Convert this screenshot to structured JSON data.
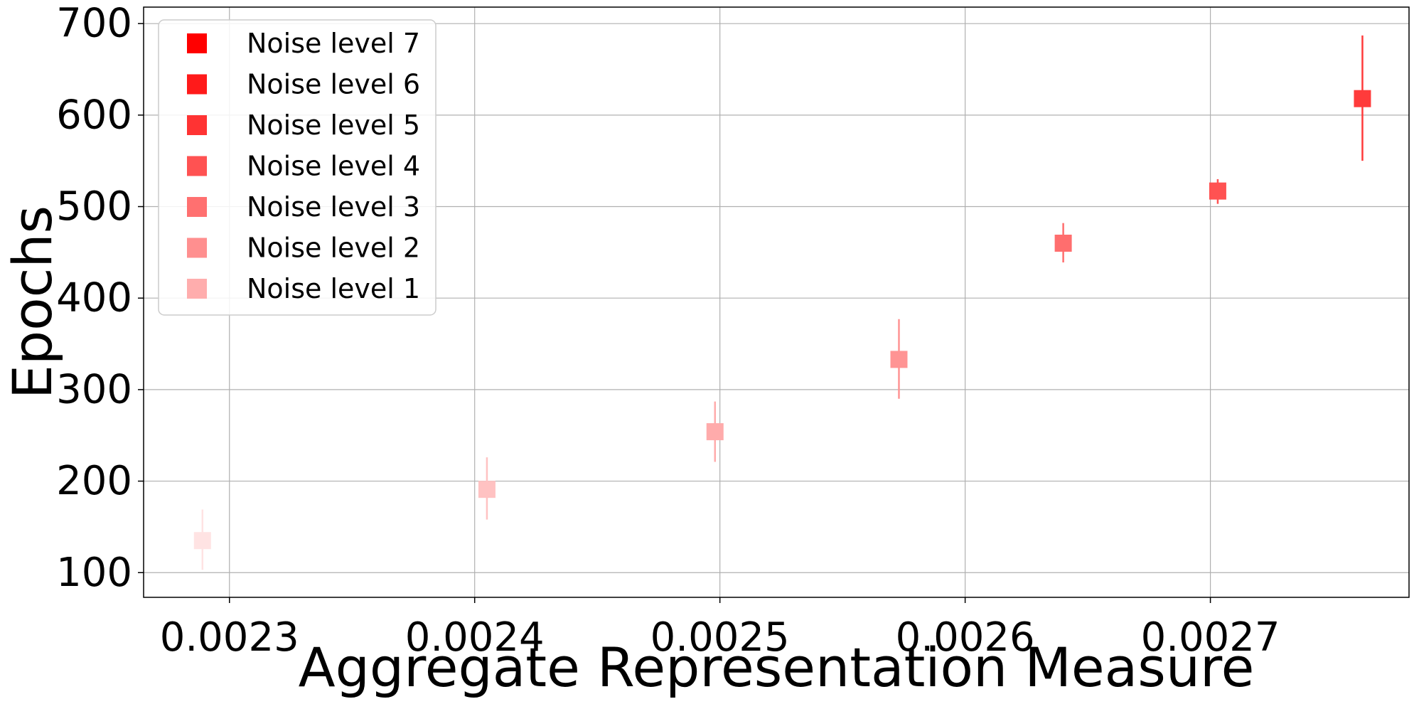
{
  "chart_data": {
    "type": "scatter",
    "title": "",
    "xlabel": "Aggregate Representation Measure",
    "ylabel": "Epochs",
    "xlim": [
      0.002265,
      0.002781
    ],
    "ylim": [
      73,
      718
    ],
    "xticks": [
      0.0023,
      0.0024,
      0.0025,
      0.0026,
      0.0027
    ],
    "xtick_labels": [
      "0.0023",
      "0.0024",
      "0.0025",
      "0.0026",
      "0.0027"
    ],
    "yticks": [
      100,
      200,
      300,
      400,
      500,
      600,
      700
    ],
    "ytick_labels": [
      "100",
      "200",
      "300",
      "400",
      "500",
      "600",
      "700"
    ],
    "grid": true,
    "legend_position": "top-left",
    "marker": "square",
    "series": [
      {
        "color": "#ffe3e3",
        "x": 0.002289,
        "y": 135,
        "yerr_low": 103,
        "yerr_high": 169
      },
      {
        "color": "#ffc2c2",
        "x": 0.002405,
        "y": 191,
        "yerr_low": 158,
        "yerr_high": 226
      },
      {
        "color": "#ffabab",
        "x": 0.002498,
        "y": 254,
        "yerr_low": 221,
        "yerr_high": 287
      },
      {
        "color": "#ff9494",
        "x": 0.002573,
        "y": 333,
        "yerr_low": 290,
        "yerr_high": 377
      },
      {
        "color": "#ff6e6e",
        "x": 0.00264,
        "y": 460,
        "yerr_low": 439,
        "yerr_high": 482
      },
      {
        "color": "#ff5252",
        "x": 0.002703,
        "y": 517,
        "yerr_low": 503,
        "yerr_high": 530
      },
      {
        "color": "#ff3b3b",
        "x": 0.002762,
        "y": 618,
        "yerr_low": 550,
        "yerr_high": 687
      }
    ],
    "legend": [
      {
        "label": "Noise level 7",
        "color": "#ff0000"
      },
      {
        "label": "Noise level 6",
        "color": "#ff1a1a"
      },
      {
        "label": "Noise level 5",
        "color": "#ff3333"
      },
      {
        "label": "Noise level 4",
        "color": "#ff5252"
      },
      {
        "label": "Noise level 3",
        "color": "#ff7070"
      },
      {
        "label": "Noise level 2",
        "color": "#ff8f8f"
      },
      {
        "label": "Noise level 1",
        "color": "#ffadad"
      }
    ]
  }
}
